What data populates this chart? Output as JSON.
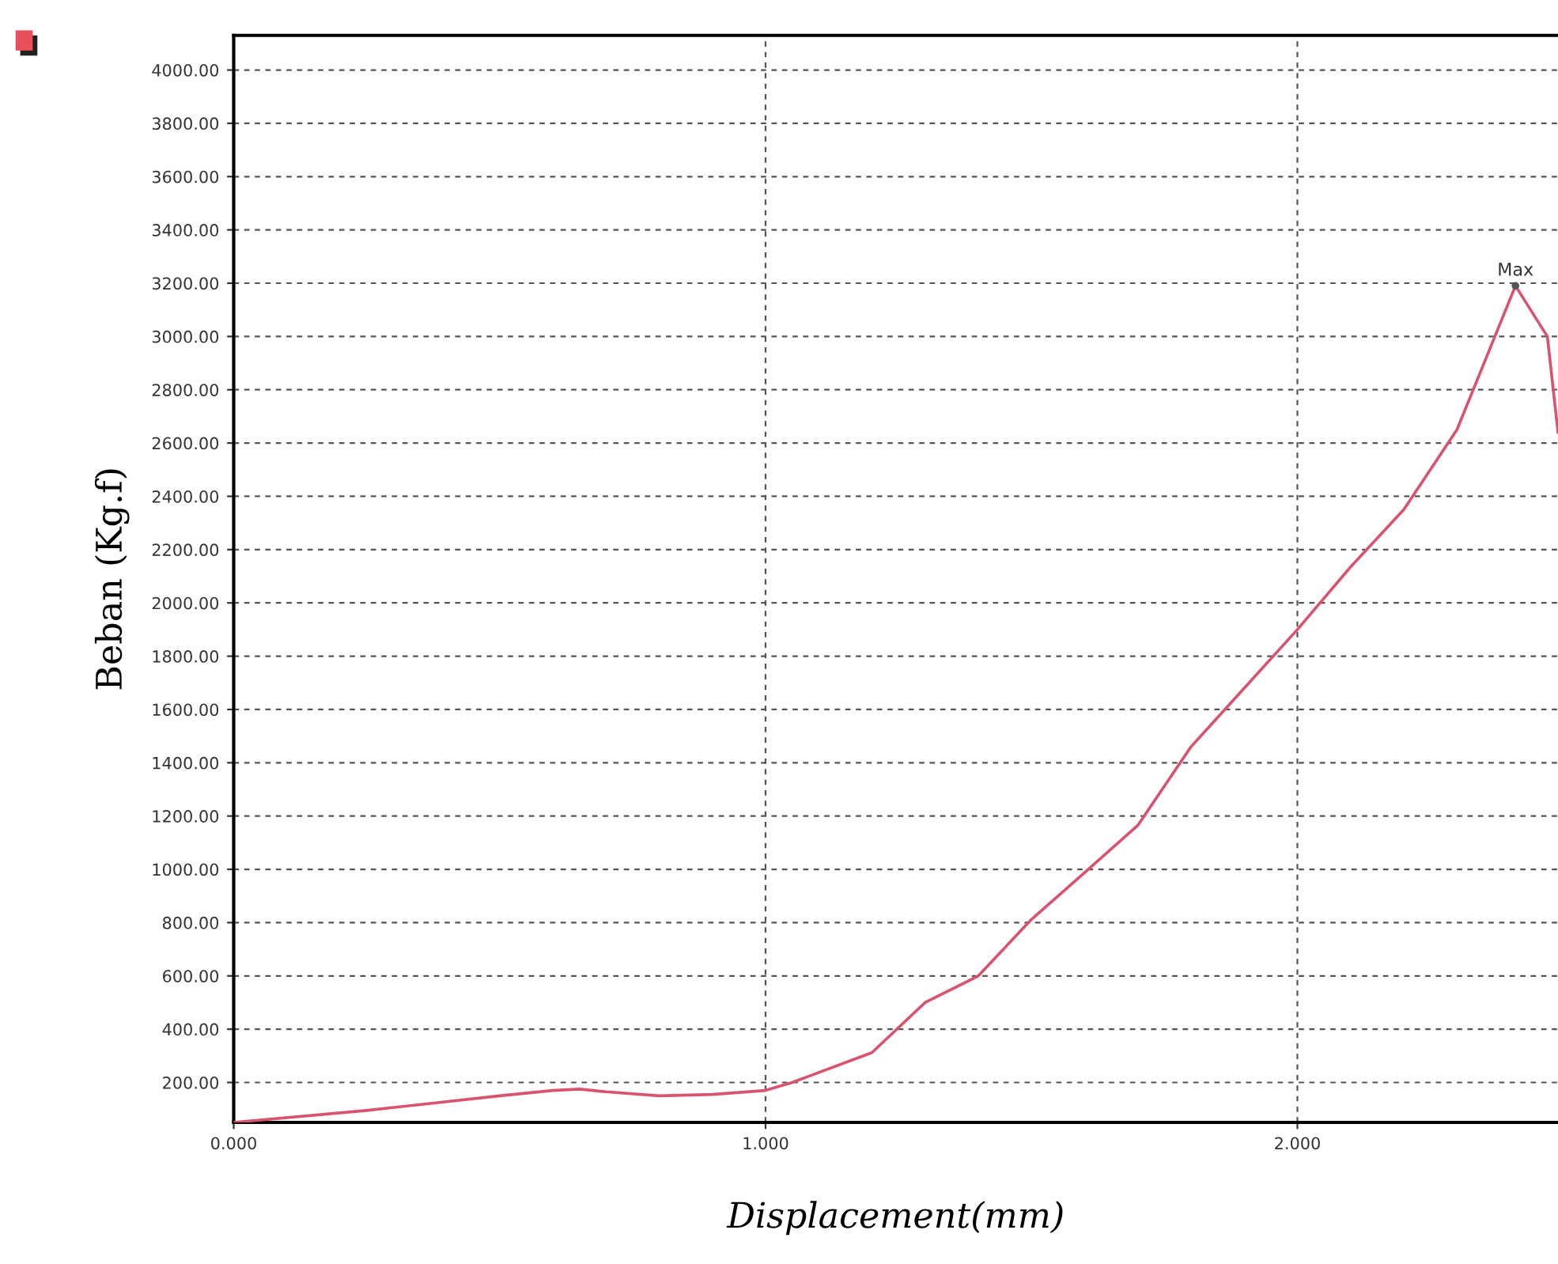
{
  "chart_data": {
    "type": "line",
    "xlabel": "Displacement(mm)",
    "ylabel": "Beban (Kg.f)",
    "x": [
      0,
      0.25,
      0.5,
      0.6,
      0.65,
      0.7,
      0.8,
      0.9,
      1.0,
      1.05,
      1.2,
      1.3,
      1.4,
      1.5,
      1.6,
      1.7,
      1.8,
      1.9,
      2.0,
      2.1,
      2.2,
      2.3,
      2.41,
      2.47,
      2.49
    ],
    "series": [
      {
        "color": "#d9536e",
        "values": [
          50,
          95,
          150,
          170,
          175,
          165,
          150,
          155,
          170,
          200,
          312,
          500,
          600,
          812,
          988,
          1165,
          1460,
          1680,
          1900,
          2135,
          2350,
          2650,
          3190,
          3000,
          2640
        ]
      }
    ],
    "annotations": [
      {
        "text": "Max",
        "x": 2.41,
        "y": 3190
      }
    ],
    "xlim": [
      0,
      2.49
    ],
    "ylim": [
      50,
      4130
    ],
    "xticks": [
      {
        "value": 0,
        "label": "0.000"
      },
      {
        "value": 1,
        "label": "1.000"
      },
      {
        "value": 2,
        "label": "2.000"
      }
    ],
    "yticks": [
      {
        "value": 200,
        "label": "200.00"
      },
      {
        "value": 400,
        "label": "400.00"
      },
      {
        "value": 600,
        "label": "600.00"
      },
      {
        "value": 800,
        "label": "800.00"
      },
      {
        "value": 1000,
        "label": "1000.00"
      },
      {
        "value": 1200,
        "label": "1200.00"
      },
      {
        "value": 1400,
        "label": "1400.00"
      },
      {
        "value": 1600,
        "label": "1600.00"
      },
      {
        "value": 1800,
        "label": "1800.00"
      },
      {
        "value": 2000,
        "label": "2000.00"
      },
      {
        "value": 2200,
        "label": "2200.00"
      },
      {
        "value": 2400,
        "label": "2400.00"
      },
      {
        "value": 2600,
        "label": "2600.00"
      },
      {
        "value": 2800,
        "label": "2800.00"
      },
      {
        "value": 3000,
        "label": "3000.00"
      },
      {
        "value": 3200,
        "label": "3200.00"
      },
      {
        "value": 3400,
        "label": "3400.00"
      },
      {
        "value": 3600,
        "label": "3600.00"
      },
      {
        "value": 3800,
        "label": "3800.00"
      },
      {
        "value": 4000,
        "label": "4000.00"
      }
    ],
    "grid": true,
    "line_style": "solid",
    "marker": "none"
  }
}
